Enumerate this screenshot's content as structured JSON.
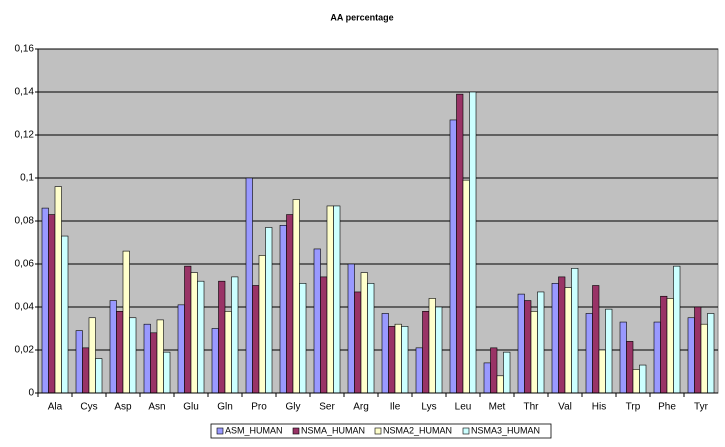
{
  "chart_data": {
    "type": "bar",
    "title": "AA percentage",
    "categories": [
      "Ala",
      "Cys",
      "Asp",
      "Asn",
      "Glu",
      "Gln",
      "Pro",
      "Gly",
      "Ser",
      "Arg",
      "Ile",
      "Lys",
      "Leu",
      "Met",
      "Thr",
      "Val",
      "His",
      "Trp",
      "Phe",
      "Tyr"
    ],
    "series": [
      {
        "name": "ASM_HUMAN",
        "color": "#9999ff",
        "values": [
          0.086,
          0.029,
          0.043,
          0.032,
          0.041,
          0.03,
          0.1,
          0.078,
          0.067,
          0.06,
          0.037,
          0.021,
          0.127,
          0.014,
          0.046,
          0.051,
          0.037,
          0.033,
          0.033,
          0.035
        ]
      },
      {
        "name": "NSMA_HUMAN",
        "color": "#993366",
        "values": [
          0.083,
          0.021,
          0.038,
          0.028,
          0.059,
          0.052,
          0.05,
          0.083,
          0.054,
          0.047,
          0.031,
          0.038,
          0.139,
          0.021,
          0.043,
          0.054,
          0.05,
          0.024,
          0.045,
          0.04
        ]
      },
      {
        "name": "NSMA2_HUMAN",
        "color": "#ffffcc",
        "values": [
          0.096,
          0.035,
          0.066,
          0.034,
          0.056,
          0.038,
          0.064,
          0.09,
          0.087,
          0.056,
          0.032,
          0.044,
          0.099,
          0.008,
          0.038,
          0.049,
          0.02,
          0.011,
          0.044,
          0.032
        ]
      },
      {
        "name": "NSMA3_HUMAN",
        "color": "#ccffff",
        "values": [
          0.073,
          0.016,
          0.035,
          0.019,
          0.052,
          0.054,
          0.077,
          0.051,
          0.087,
          0.051,
          0.031,
          0.04,
          0.14,
          0.019,
          0.047,
          0.058,
          0.039,
          0.013,
          0.059,
          0.037
        ]
      }
    ],
    "ylim": [
      0,
      0.16
    ],
    "yticks": [
      0,
      {
        "value": 0.02,
        "label": "0,02"
      },
      {
        "value": 0.04,
        "label": "0,04"
      },
      {
        "value": 0.06,
        "label": "0,06"
      },
      {
        "value": 0.08,
        "label": "0,08"
      },
      {
        "value": 0.1,
        "label": "0,1"
      },
      {
        "value": 0.12,
        "label": "0,12"
      },
      {
        "value": 0.14,
        "label": "0,14"
      },
      {
        "value": 0.16,
        "label": "0,16"
      }
    ],
    "grid": true,
    "legend": "bottom"
  }
}
